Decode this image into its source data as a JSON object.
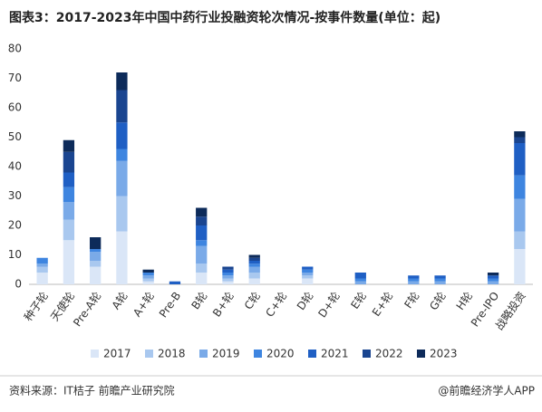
{
  "chart_data": {
    "type": "stacked_bar",
    "title": "图表3：2017-2023年中国中药行业投融资轮次情况-按事件数量(单位：起)",
    "categories": [
      "种子轮",
      "天使轮",
      "Pre-A轮",
      "A轮",
      "A+轮",
      "Pre-B",
      "B轮",
      "B+轮",
      "C轮",
      "C+轮",
      "D轮",
      "D+轮",
      "E轮",
      "E+轮",
      "F轮",
      "G轮",
      "H轮",
      "Pre-IPO",
      "战略投资"
    ],
    "series": [
      {
        "name": "2017",
        "color": "#dae6f7",
        "values": [
          4,
          15,
          6,
          18,
          1,
          0,
          4,
          1,
          2,
          0,
          2,
          0,
          0,
          0,
          0,
          0,
          0,
          0,
          12
        ]
      },
      {
        "name": "2018",
        "color": "#a9c8ef",
        "values": [
          2,
          7,
          2,
          12,
          1,
          0,
          3,
          1,
          2,
          0,
          1,
          0,
          0,
          0,
          0,
          0,
          0,
          0,
          6
        ]
      },
      {
        "name": "2019",
        "color": "#7aaae8",
        "values": [
          1,
          6,
          3,
          12,
          1,
          0,
          6,
          1,
          2,
          0,
          1,
          0,
          1,
          0,
          1,
          1,
          0,
          1,
          11
        ]
      },
      {
        "name": "2020",
        "color": "#3e85e0",
        "values": [
          2,
          5,
          1,
          4,
          1,
          0,
          2,
          1,
          1,
          0,
          1,
          0,
          1,
          0,
          1,
          1,
          0,
          1,
          8
        ]
      },
      {
        "name": "2021",
        "color": "#1f5fc4",
        "values": [
          0,
          5,
          0,
          9,
          0,
          1,
          5,
          1,
          1,
          0,
          1,
          0,
          2,
          0,
          1,
          1,
          0,
          1,
          11
        ]
      },
      {
        "name": "2022",
        "color": "#1a4590",
        "values": [
          0,
          7,
          0,
          11,
          0,
          0,
          3,
          1,
          1,
          0,
          0,
          0,
          0,
          0,
          0,
          0,
          0,
          0,
          2
        ]
      },
      {
        "name": "2023",
        "color": "#0d2b5a",
        "values": [
          0,
          4,
          4,
          6,
          1,
          0,
          3,
          0,
          1,
          0,
          0,
          0,
          0,
          0,
          0,
          0,
          0,
          1,
          2
        ]
      }
    ],
    "ylim": [
      0,
      80
    ],
    "yticks": [
      0,
      10,
      20,
      30,
      40,
      50,
      60,
      70,
      80
    ],
    "grid": false,
    "source": "资料来源：IT桔子 前瞻产业研究院",
    "brand": "@前瞻经济学人APP"
  }
}
